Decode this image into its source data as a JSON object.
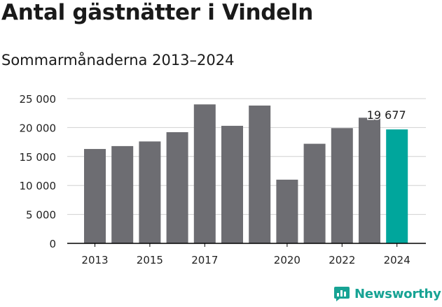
{
  "title": "Antal gästnätter i Vindeln",
  "subtitle": "Sommarmånaderna 2013–2024",
  "brand": {
    "name": "Newsworthy"
  },
  "colors": {
    "bar": "#6d6d72",
    "highlight": "#00a69c",
    "grid": "#d0d0d0",
    "axis": "#000000",
    "brand": "#17a394"
  },
  "chart_data": {
    "type": "bar",
    "title": "Antal gästnätter i Vindeln",
    "subtitle": "Sommarmånaderna 2013–2024",
    "categories": [
      "2013",
      "2014",
      "2015",
      "2016",
      "2017",
      "2018",
      "2019",
      "2020",
      "2021",
      "2022",
      "2023",
      "2024"
    ],
    "values": [
      16300,
      16800,
      17600,
      19200,
      24000,
      20300,
      23800,
      11000,
      17200,
      19900,
      21700,
      19677
    ],
    "xtick_labels": [
      "2013",
      "",
      "2015",
      "",
      "2017",
      "",
      "",
      "2020",
      "",
      "2022",
      "",
      "2024"
    ],
    "ylim": [
      0,
      25000
    ],
    "yticks": [
      0,
      5000,
      10000,
      15000,
      20000,
      25000
    ],
    "ytick_labels": [
      "0",
      "5 000",
      "10 000",
      "15 000",
      "20 000",
      "25 000"
    ],
    "highlight_index": 11,
    "annotation": "19 677",
    "xlabel": "",
    "ylabel": "",
    "grid": true
  }
}
